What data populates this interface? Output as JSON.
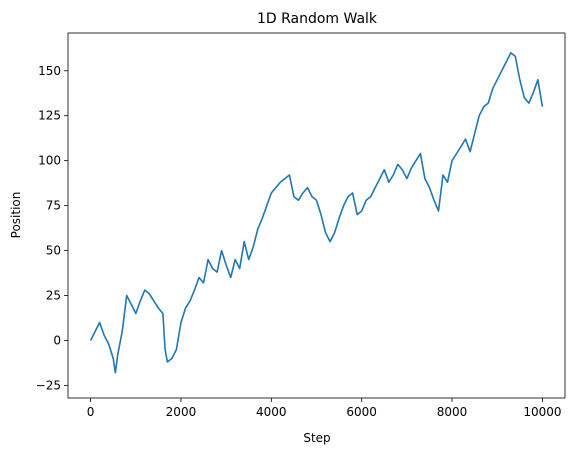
{
  "chart_data": {
    "type": "line",
    "title": "1D Random Walk",
    "xlabel": "Step",
    "ylabel": "Position",
    "xlim": [
      -500,
      10500
    ],
    "ylim": [
      -32,
      171
    ],
    "xticks": [
      0,
      2000,
      4000,
      6000,
      8000,
      10000
    ],
    "yticks": [
      -25,
      0,
      25,
      50,
      75,
      100,
      125,
      150
    ],
    "grid": false,
    "color": "#1f77b4",
    "series": [
      {
        "x": [
          0,
          100,
          200,
          300,
          400,
          500,
          550,
          600,
          700,
          800,
          900,
          1000,
          1100,
          1200,
          1300,
          1400,
          1500,
          1600,
          1650,
          1700,
          1800,
          1900,
          2000,
          2100,
          2200,
          2300,
          2400,
          2500,
          2600,
          2700,
          2800,
          2900,
          3000,
          3100,
          3200,
          3300,
          3400,
          3500,
          3600,
          3700,
          3800,
          3900,
          4000,
          4100,
          4200,
          4300,
          4400,
          4500,
          4600,
          4700,
          4800,
          4900,
          5000,
          5100,
          5200,
          5300,
          5400,
          5500,
          5600,
          5700,
          5800,
          5900,
          6000,
          6100,
          6200,
          6300,
          6400,
          6500,
          6600,
          6700,
          6800,
          6900,
          7000,
          7100,
          7200,
          7300,
          7400,
          7500,
          7600,
          7700,
          7800,
          7900,
          8000,
          8100,
          8200,
          8300,
          8400,
          8500,
          8600,
          8700,
          8800,
          8900,
          9000,
          9100,
          9200,
          9300,
          9400,
          9500,
          9600,
          9700,
          9800,
          9900,
          10000
        ],
        "y": [
          0,
          5,
          10,
          3,
          -2,
          -10,
          -18,
          -8,
          5,
          25,
          20,
          15,
          22,
          28,
          26,
          22,
          18,
          15,
          -5,
          -12,
          -10,
          -5,
          10,
          18,
          22,
          28,
          35,
          32,
          45,
          40,
          38,
          50,
          42,
          35,
          45,
          40,
          55,
          45,
          52,
          62,
          68,
          75,
          82,
          85,
          88,
          90,
          92,
          80,
          78,
          82,
          85,
          80,
          78,
          70,
          60,
          55,
          60,
          68,
          75,
          80,
          82,
          70,
          72,
          78,
          80,
          85,
          90,
          95,
          88,
          92,
          98,
          95,
          90,
          96,
          100,
          104,
          90,
          85,
          78,
          72,
          92,
          88,
          100,
          104,
          108,
          112,
          105,
          115,
          125,
          130,
          132,
          140,
          145,
          150,
          155,
          160,
          158,
          145,
          135,
          132,
          138,
          145,
          130
        ]
      }
    ]
  }
}
